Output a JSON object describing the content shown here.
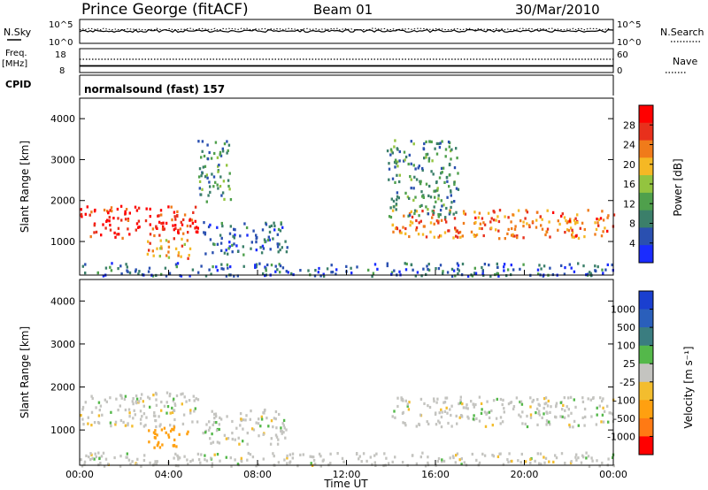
{
  "header": {
    "station": "Prince George (fitACF)",
    "beam": "Beam 01",
    "date": "30/Mar/2010"
  },
  "panels": {
    "nsky": {
      "label": "N.Sky",
      "ticks_left": [
        "10^5",
        "10^0"
      ],
      "ticks_right": [
        "10^5",
        "10^0"
      ],
      "right_label": "N.Search",
      "right_style": "dotted"
    },
    "freq": {
      "label": "Freq.",
      "unit": "[MHz]",
      "ticks_left": [
        "18",
        "8"
      ],
      "ticks_right": [
        "60",
        "0"
      ],
      "right_label": "Nave",
      "right_style": "dotted"
    },
    "cpid": {
      "label": "CPID",
      "text": "normalsound (fast) 157"
    }
  },
  "colors": {
    "power": [
      "#1a2cff",
      "#2a50b0",
      "#3b7f6a",
      "#4fa04c",
      "#93c43f",
      "#f5b824",
      "#f07b1a",
      "#e8301c",
      "#ff0000"
    ],
    "velocity": [
      "#ff0000",
      "#ff7a14",
      "#ffa010",
      "#f3bd2e",
      "#c4c4c0",
      "#54b84a",
      "#3a7d80",
      "#2a5fbb",
      "#1a3fd0"
    ]
  },
  "chart_data": [
    {
      "type": "heatmap",
      "title": "",
      "xlabel": "",
      "ylabel": "Slant Range [km]",
      "xlim": [
        "00:00",
        "24:00"
      ],
      "ylim": [
        180,
        4500
      ],
      "y_ticks": [
        "4000",
        "3000",
        "2000",
        "1000"
      ],
      "colorbar": {
        "label": "Power [dB]",
        "ticks": [
          "28",
          "24",
          "20",
          "16",
          "12",
          "8",
          "4"
        ],
        "range": [
          0,
          30
        ]
      },
      "echo_regions": [
        {
          "t": [
            0.0,
            5.3
          ],
          "range_km": [
            1100,
            1900
          ],
          "level_db": 26
        },
        {
          "t": [
            3.0,
            5.0
          ],
          "range_km": [
            600,
            1100
          ],
          "level_db": 20
        },
        {
          "t": [
            5.5,
            9.3
          ],
          "range_km": [
            700,
            1500
          ],
          "level_db": 6
        },
        {
          "t": [
            5.3,
            6.8
          ],
          "range_km": [
            2000,
            3500
          ],
          "level_db": 10
        },
        {
          "t": [
            14.0,
            24.0
          ],
          "range_km": [
            1100,
            1800
          ],
          "level_db": 22
        },
        {
          "t": [
            13.8,
            17.0
          ],
          "range_km": [
            1600,
            3500
          ],
          "level_db": 10
        },
        {
          "t": [
            0.0,
            24.0
          ],
          "range_km": [
            180,
            500
          ],
          "level_db": 6
        }
      ]
    },
    {
      "type": "heatmap",
      "title": "",
      "xlabel": "Time UT",
      "ylabel": "Slant Range [km]",
      "xlim": [
        "00:00",
        "24:00"
      ],
      "ylim": [
        180,
        4500
      ],
      "y_ticks": [
        "4000",
        "3000",
        "2000",
        "1000"
      ],
      "x_ticks": [
        "00:00",
        "04:00",
        "08:00",
        "12:00",
        "16:00",
        "20:00",
        "00:00"
      ],
      "colorbar": {
        "label": "Velocity [m s⁻¹]",
        "ticks": [
          "1000",
          "500",
          "100",
          "25",
          "-25",
          "-100",
          "-500",
          "-1000"
        ]
      },
      "echo_regions": [
        {
          "t": [
            0.0,
            5.3
          ],
          "range_km": [
            1100,
            1900
          ],
          "velocity_ms": 0
        },
        {
          "t": [
            3.0,
            5.0
          ],
          "range_km": [
            600,
            1100
          ],
          "velocity_ms": -200
        },
        {
          "t": [
            5.5,
            9.3
          ],
          "range_km": [
            700,
            1500
          ],
          "velocity_ms": 0
        },
        {
          "t": [
            14.0,
            24.0
          ],
          "range_km": [
            1100,
            1800
          ],
          "velocity_ms": 0
        },
        {
          "t": [
            0.0,
            24.0
          ],
          "range_km": [
            180,
            500
          ],
          "velocity_ms": 0
        }
      ]
    }
  ]
}
